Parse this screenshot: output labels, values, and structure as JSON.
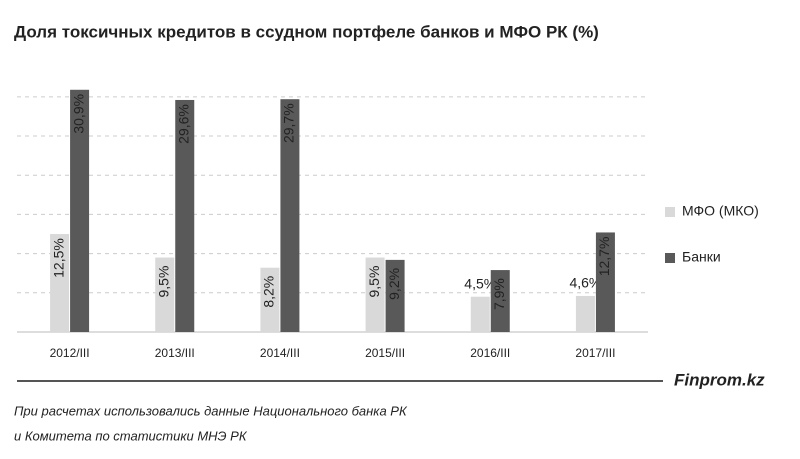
{
  "chart_data": {
    "type": "bar",
    "title": "Доля токсичных кредитов в ссудном  портфеле банков и МФО РК (%)",
    "categories": [
      "2012/III",
      "2013/III",
      "2014/III",
      "2015/III",
      "2016/III",
      "2017/III"
    ],
    "series": [
      {
        "name": "МФО (МКО)",
        "color": "#d9d9d9",
        "values": [
          12.5,
          9.5,
          8.2,
          9.5,
          4.5,
          4.6
        ],
        "value_labels": [
          "12,5%",
          "9,5%",
          "8,2%",
          "9,5%",
          "4,5%",
          "4,6%"
        ]
      },
      {
        "name": "Банки",
        "color": "#595959",
        "values": [
          30.9,
          29.6,
          29.7,
          9.2,
          7.9,
          12.7
        ],
        "value_labels": [
          "30,9%",
          "29,6%",
          "29,7%",
          "9,2%",
          "7,9%",
          "12,7%"
        ]
      }
    ],
    "ylim": [
      0,
      31
    ],
    "yticks": [
      0,
      5,
      10,
      15,
      20,
      25,
      30
    ],
    "grid": true,
    "legend": "right",
    "source": "Finprom.kz",
    "note": [
      "При расчетах использовались данные Национального  банка РК",
      "и Комитета по статистики МНЭ РК"
    ]
  }
}
